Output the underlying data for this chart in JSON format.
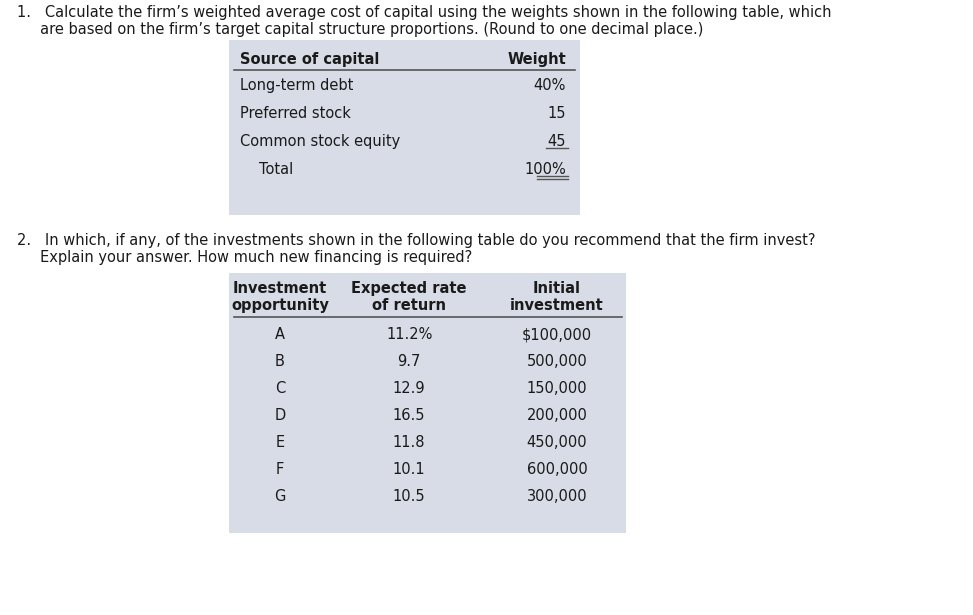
{
  "bg_color": "#ffffff",
  "text_color": "#1a1a1a",
  "table1_bg": "#d8dce6",
  "table2_bg": "#d8dce6",
  "q1_line1": "1.   Calculate the firm’s weighted average cost of capital using the weights shown in the following table, which",
  "q1_line2": "     are based on the firm’s target capital structure proportions. (Round to one decimal place.)",
  "table1_headers": [
    "Source of capital",
    "Weight"
  ],
  "table1_rows": [
    [
      "Long-term debt",
      "40%"
    ],
    [
      "Preferred stock",
      "15"
    ],
    [
      "Common stock equity",
      "45"
    ],
    [
      "Total",
      "100%"
    ]
  ],
  "q2_line1": "2.   In which, if any, of the investments shown in the following table do you recommend that the firm invest?",
  "q2_line2": "     Explain your answer. How much new financing is required?",
  "table2_headers": [
    "Investment\nopportunity",
    "Expected rate\nof return",
    "Initial\ninvestment"
  ],
  "table2_rows": [
    [
      "A",
      "11.2%",
      "$100,000"
    ],
    [
      "B",
      "9.7",
      "500,000"
    ],
    [
      "C",
      "12.9",
      "150,000"
    ],
    [
      "D",
      "16.5",
      "200,000"
    ],
    [
      "E",
      "11.8",
      "450,000"
    ],
    [
      "F",
      "10.1",
      "600,000"
    ],
    [
      "G",
      "10.5",
      "300,000"
    ]
  ],
  "underline_rows_t1": [
    2,
    3
  ],
  "double_underline_t1": 3
}
